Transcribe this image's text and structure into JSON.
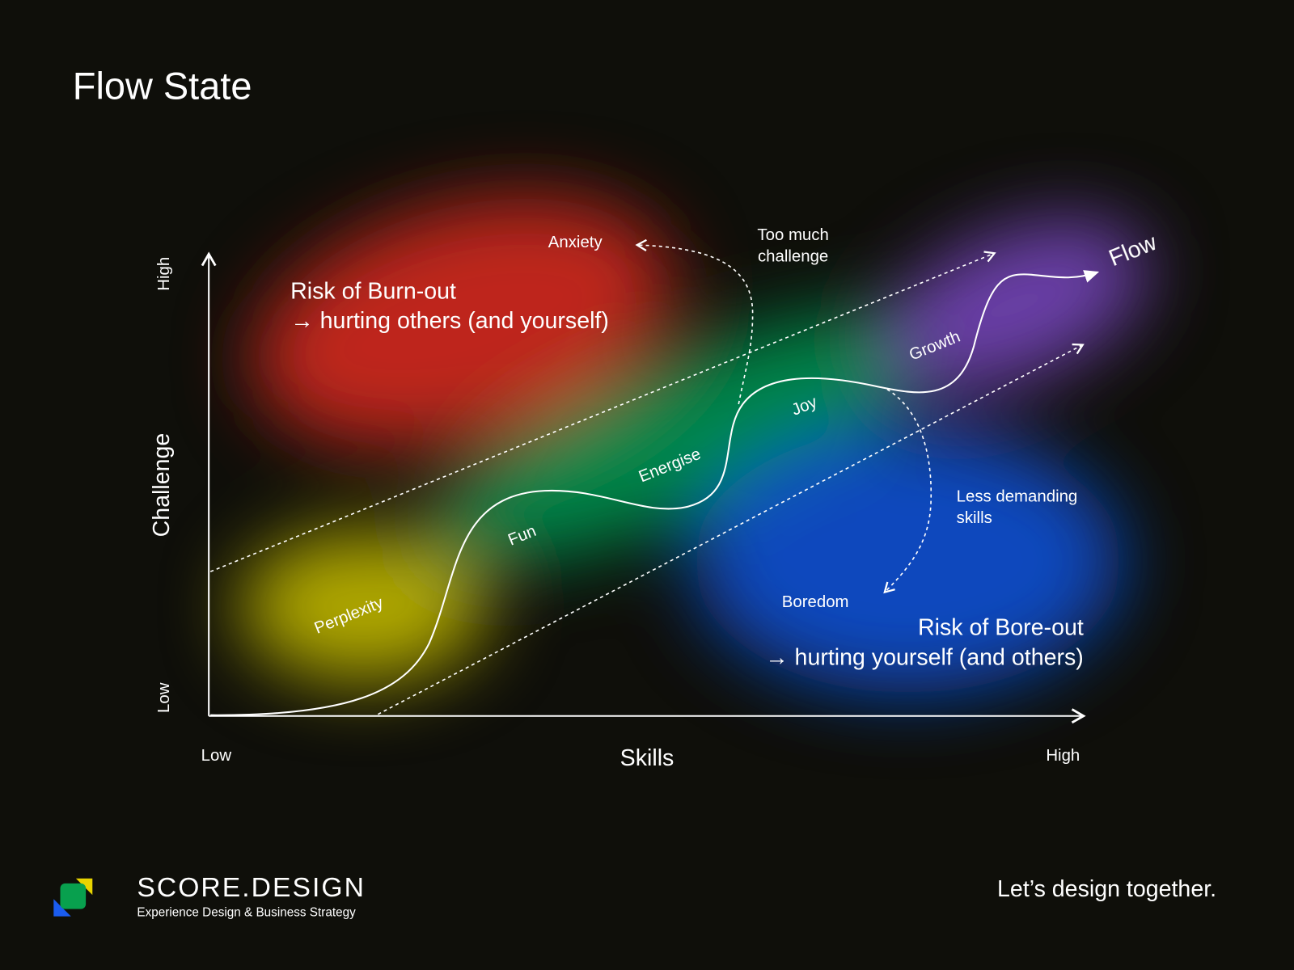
{
  "title": "Flow State",
  "axes": {
    "y_label": "Challenge",
    "y_low": "Low",
    "y_high": "High",
    "x_label": "Skills",
    "x_low": "Low",
    "x_high": "High"
  },
  "zones": {
    "burnout": {
      "title": "Risk of Burn-out",
      "subtitle": "→ hurting others (and yourself)"
    },
    "boreout": {
      "title": "Risk of Bore-out",
      "subtitle": "→ hurting yourself (and others)"
    }
  },
  "labels": {
    "anxiety": "Anxiety",
    "too_much_challenge": [
      "Too much",
      "challenge"
    ],
    "boredom": "Boredom",
    "less_demanding": [
      "Less demanding",
      "skills"
    ],
    "flow": "Flow"
  },
  "curve_labels": [
    "Perplexity",
    "Fun",
    "Energise",
    "Joy",
    "Growth"
  ],
  "footer": {
    "brand": "SCORE.DESIGN",
    "tagline": "Experience Design & Business Strategy",
    "slogan": "Let’s design together."
  }
}
